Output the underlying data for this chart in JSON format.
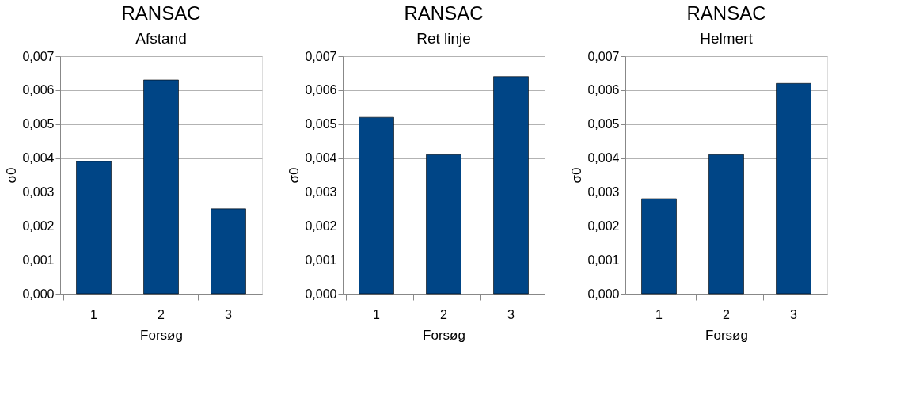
{
  "chart_data": [
    {
      "type": "bar",
      "title": "RANSAC",
      "subtitle": "Afstand",
      "xlabel": "Forsøg",
      "ylabel": "σ0",
      "categories": [
        "1",
        "2",
        "3"
      ],
      "values": [
        0.0039,
        0.0063,
        0.0025
      ],
      "color": "#004586",
      "ylim": [
        0,
        0.007
      ],
      "yticks": [
        {
          "value": 0,
          "label": "0,000"
        },
        {
          "value": 0.001,
          "label": "0,001"
        },
        {
          "value": 0.002,
          "label": "0,002"
        },
        {
          "value": 0.003,
          "label": "0,003"
        },
        {
          "value": 0.004,
          "label": "0,004"
        },
        {
          "value": 0.005,
          "label": "0,005"
        },
        {
          "value": 0.006,
          "label": "0,006"
        },
        {
          "value": 0.007,
          "label": "0,007"
        }
      ],
      "grid": "y",
      "legend": false
    },
    {
      "type": "bar",
      "title": "RANSAC",
      "subtitle": "Ret linje",
      "xlabel": "Forsøg",
      "ylabel": "σ0",
      "categories": [
        "1",
        "2",
        "3"
      ],
      "values": [
        0.0052,
        0.0041,
        0.0064
      ],
      "color": "#004586",
      "ylim": [
        0,
        0.007
      ],
      "yticks": [
        {
          "value": 0,
          "label": "0,000"
        },
        {
          "value": 0.001,
          "label": "0,001"
        },
        {
          "value": 0.002,
          "label": "0,002"
        },
        {
          "value": 0.003,
          "label": "0,003"
        },
        {
          "value": 0.004,
          "label": "0,004"
        },
        {
          "value": 0.005,
          "label": "0,005"
        },
        {
          "value": 0.006,
          "label": "0,006"
        },
        {
          "value": 0.007,
          "label": "0,007"
        }
      ],
      "grid": "y",
      "legend": false
    },
    {
      "type": "bar",
      "title": "RANSAC",
      "subtitle": "Helmert",
      "xlabel": "Forsøg",
      "ylabel": "σ0",
      "categories": [
        "1",
        "2",
        "3"
      ],
      "values": [
        0.0028,
        0.0041,
        0.0062
      ],
      "color": "#004586",
      "ylim": [
        0,
        0.007
      ],
      "yticks": [
        {
          "value": 0,
          "label": "0,000"
        },
        {
          "value": 0.001,
          "label": "0,001"
        },
        {
          "value": 0.002,
          "label": "0,002"
        },
        {
          "value": 0.003,
          "label": "0,003"
        },
        {
          "value": 0.004,
          "label": "0,004"
        },
        {
          "value": 0.005,
          "label": "0,005"
        },
        {
          "value": 0.006,
          "label": "0,006"
        },
        {
          "value": 0.007,
          "label": "0,007"
        }
      ],
      "grid": "y",
      "legend": false
    }
  ]
}
